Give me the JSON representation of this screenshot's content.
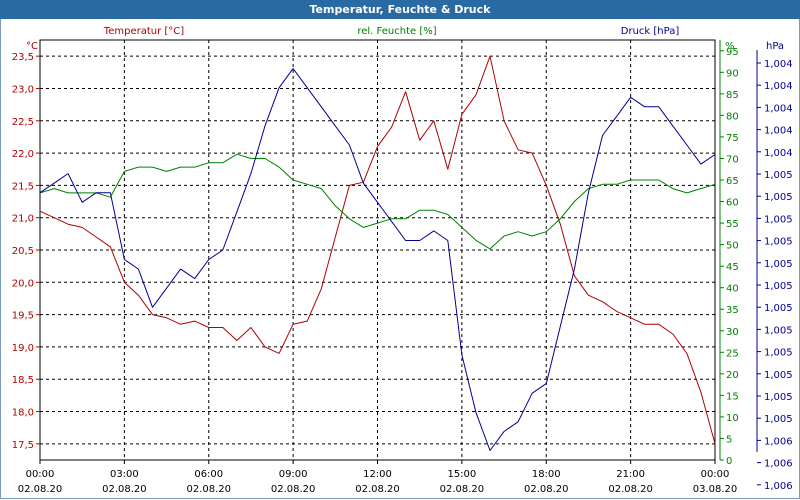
{
  "title": "Temperatur, Feuchte & Druck",
  "chart_data": {
    "type": "line",
    "title": "Temperatur, Feuchte & Druck",
    "x": [
      "00:00",
      "00:30",
      "01:00",
      "01:30",
      "02:00",
      "02:30",
      "03:00",
      "03:30",
      "04:00",
      "04:30",
      "05:00",
      "05:30",
      "06:00",
      "06:30",
      "07:00",
      "07:30",
      "08:00",
      "08:30",
      "09:00",
      "09:30",
      "10:00",
      "10:30",
      "11:00",
      "11:30",
      "12:00",
      "12:30",
      "13:00",
      "13:30",
      "14:00",
      "14:30",
      "15:00",
      "15:30",
      "16:00",
      "16:30",
      "17:00",
      "17:30",
      "18:00",
      "18:30",
      "19:00",
      "19:30",
      "20:00",
      "20:30",
      "21:00",
      "21:30",
      "22:00",
      "22:30",
      "23:00",
      "23:30",
      "00:00"
    ],
    "x_ticks": [
      {
        "time": "00:00",
        "date": "02.08.20"
      },
      {
        "time": "03:00",
        "date": "02.08.20"
      },
      {
        "time": "06:00",
        "date": "02.08.20"
      },
      {
        "time": "09:00",
        "date": "02.08.20"
      },
      {
        "time": "12:00",
        "date": "02.08.20"
      },
      {
        "time": "15:00",
        "date": "02.08.20"
      },
      {
        "time": "18:00",
        "date": "02.08.20"
      },
      {
        "time": "21:00",
        "date": "02.08.20"
      },
      {
        "time": "00:00",
        "date": "03.08.20"
      }
    ],
    "axes": {
      "left": {
        "unit": "°C",
        "label": "Temperatur [°C]",
        "ylim": [
          17.25,
          23.75
        ],
        "ticks": [
          "17,5",
          "18,0",
          "18,5",
          "19,0",
          "19,5",
          "20,0",
          "20,5",
          "21,0",
          "21,5",
          "22,0",
          "22,5",
          "23,0",
          "23,5"
        ]
      },
      "middle": {
        "unit": "%",
        "label": "rel. Feuchte [%]",
        "ylim": [
          0,
          97.5
        ],
        "ticks": [
          "0",
          "5",
          "10",
          "15",
          "20",
          "25",
          "30",
          "35",
          "40",
          "45",
          "50",
          "55",
          "60",
          "65",
          "70",
          "75",
          "80",
          "85",
          "90",
          "95"
        ]
      },
      "right": {
        "unit": "hPa",
        "label": "Druck [hPa]",
        "ylim": [
          1003.9,
          1006.1
        ],
        "ticks": [
          "1,004",
          "1,004",
          "1,004",
          "1,004",
          "1,004",
          "1,005",
          "1,005",
          "1,005",
          "1,005",
          "1,005",
          "1,005",
          "1,005",
          "1,005",
          "1,005",
          "1,005",
          "1,005",
          "1,005",
          "1,006",
          "1,006",
          "1,006"
        ]
      }
    },
    "grid": true,
    "series": [
      {
        "name": "Temperatur [°C]",
        "axis": "left",
        "color": "#b00000",
        "values": [
          21.1,
          21.0,
          20.9,
          20.85,
          20.7,
          20.55,
          20.0,
          19.8,
          19.5,
          19.45,
          19.35,
          19.4,
          19.3,
          19.3,
          19.1,
          19.3,
          19.0,
          18.9,
          19.35,
          19.4,
          19.9,
          20.7,
          21.5,
          21.55,
          22.1,
          22.4,
          22.95,
          22.2,
          22.5,
          21.75,
          22.6,
          22.9,
          23.5,
          22.5,
          22.05,
          22.0,
          21.5,
          20.9,
          20.1,
          19.8,
          19.7,
          19.55,
          19.45,
          19.35,
          19.35,
          19.2,
          18.9,
          18.3,
          17.5
        ]
      },
      {
        "name": "rel. Feuchte [%]",
        "axis": "middle",
        "color": "#008000",
        "values": [
          62,
          63,
          62,
          62,
          62,
          61,
          67,
          68,
          68,
          67,
          68,
          68,
          69,
          69,
          71,
          70,
          70,
          68,
          65,
          64,
          63,
          59,
          56,
          54,
          55,
          56,
          56,
          58,
          58,
          57,
          54,
          51,
          49,
          52,
          53,
          52,
          53,
          56,
          60,
          63,
          64,
          64,
          65,
          65,
          65,
          63,
          62,
          63,
          64
        ]
      },
      {
        "name": "Druck [hPa]",
        "axis": "right",
        "color": "#000090",
        "values": [
          1005.3,
          1005.35,
          1005.4,
          1005.25,
          1005.3,
          1005.3,
          1004.95,
          1004.9,
          1004.7,
          1004.8,
          1004.9,
          1004.85,
          1004.95,
          1005.0,
          1005.2,
          1005.4,
          1005.65,
          1005.85,
          1005.95,
          1005.85,
          1005.75,
          1005.65,
          1005.55,
          1005.35,
          1005.25,
          1005.15,
          1005.05,
          1005.05,
          1005.1,
          1005.05,
          1004.45,
          1004.15,
          1003.95,
          1004.05,
          1004.1,
          1004.25,
          1004.3,
          1004.6,
          1004.9,
          1005.3,
          1005.6,
          1005.7,
          1005.8,
          1005.75,
          1005.75,
          1005.65,
          1005.55,
          1005.45,
          1005.5
        ]
      }
    ]
  }
}
